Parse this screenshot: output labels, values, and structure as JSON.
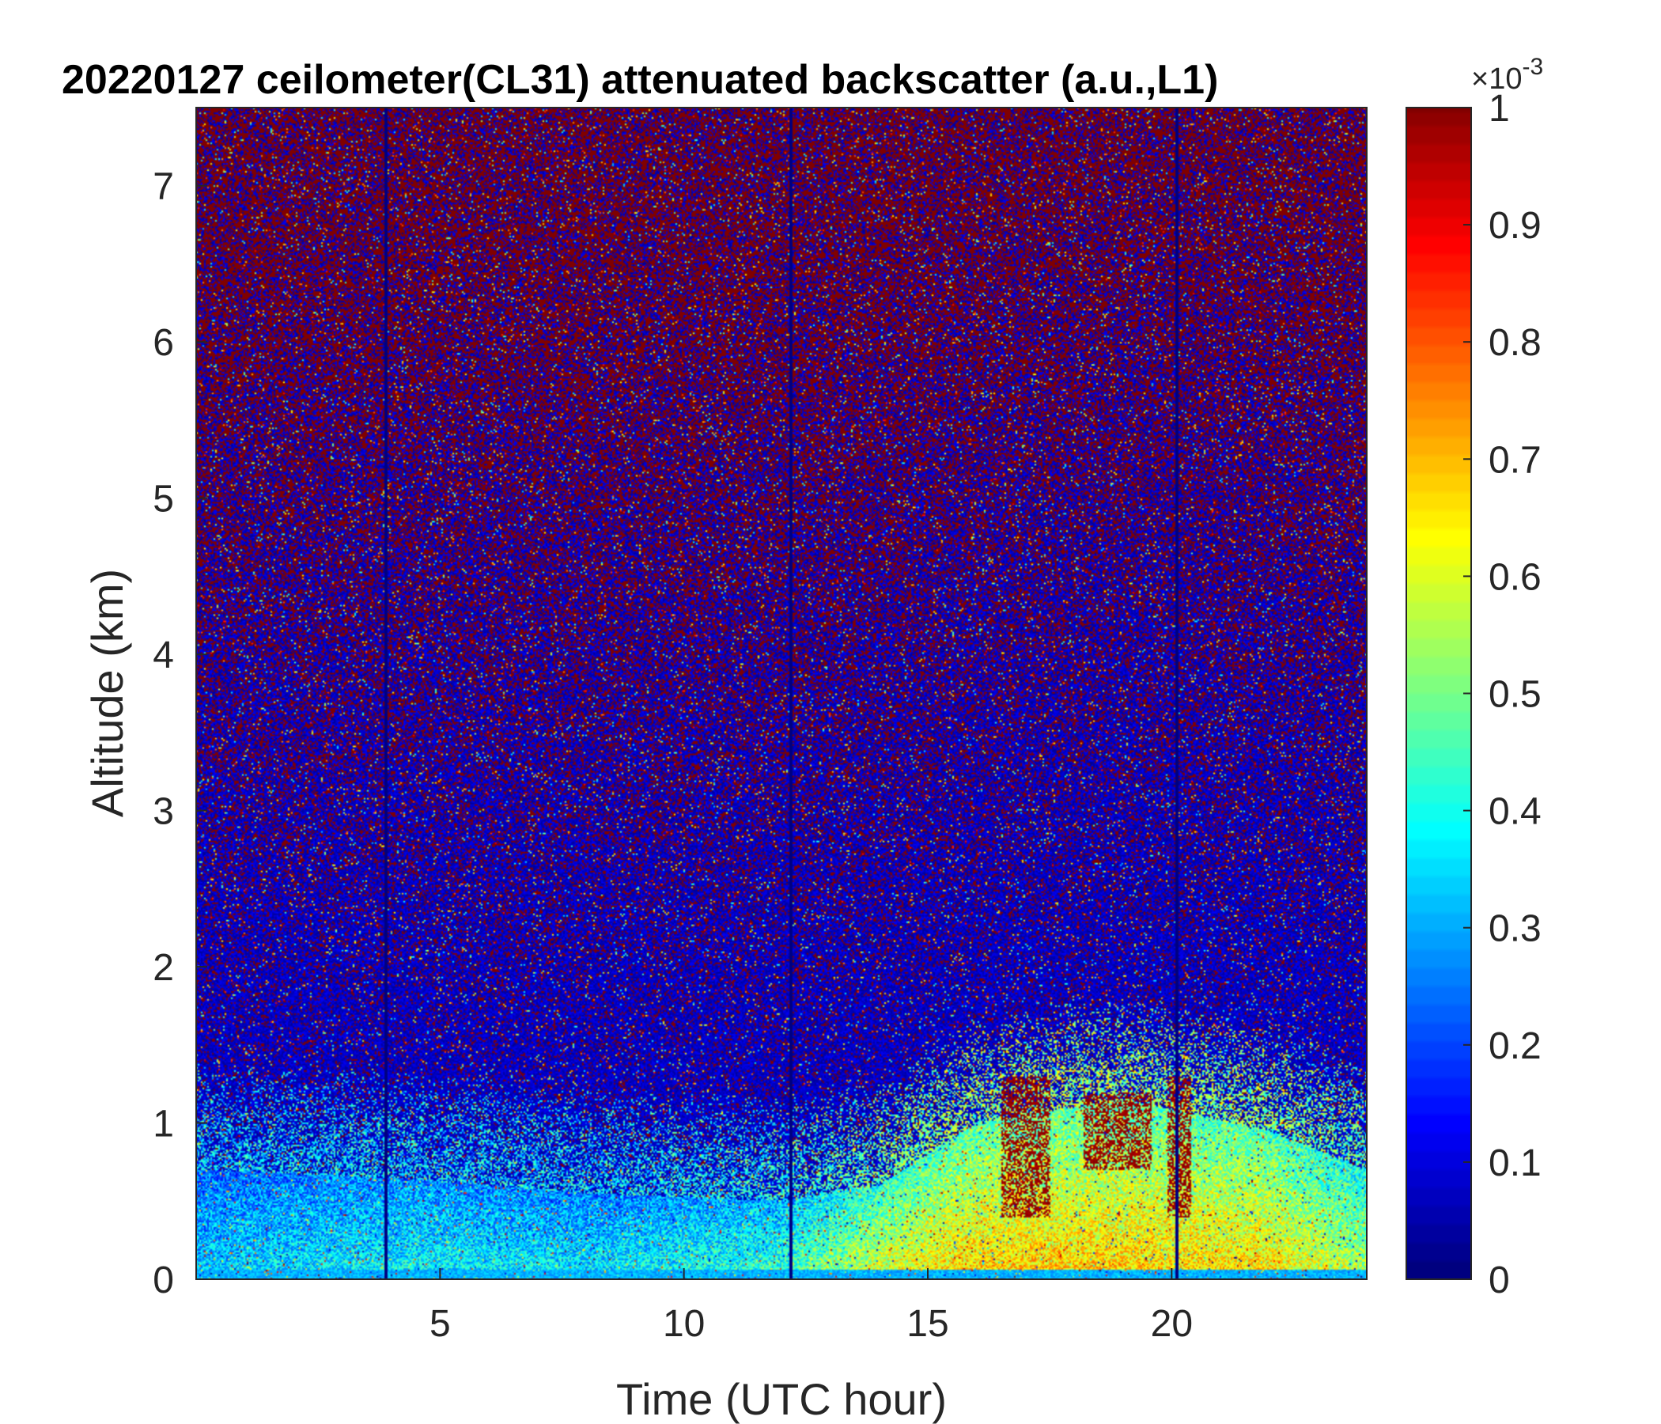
{
  "chart_data": {
    "type": "heatmap",
    "title": "20220127 ceilometer(CL31) attenuated backscatter (a.u.,L1)",
    "xlabel": "Time (UTC hour)",
    "ylabel": "Altitude (km)",
    "xlim": [
      0,
      24
    ],
    "ylim": [
      0,
      7.5
    ],
    "xticks": [
      5,
      10,
      15,
      20
    ],
    "yticks": [
      0,
      1,
      2,
      3,
      4,
      5,
      6,
      7
    ],
    "colormap": "jet",
    "colorbar": {
      "clim": [
        0,
        1
      ],
      "ticks": [
        0,
        0.1,
        0.2,
        0.3,
        0.4,
        0.5,
        0.6,
        0.7,
        0.8,
        0.9,
        1
      ],
      "exponent_base": "×10",
      "exponent_power": "-3"
    },
    "grid": false,
    "features": {
      "boundary_layer": [
        {
          "hour": 0,
          "top_km": 0.7,
          "level": 0.3
        },
        {
          "hour": 4,
          "top_km": 0.65,
          "level": 0.35
        },
        {
          "hour": 8,
          "top_km": 0.55,
          "level": 0.33
        },
        {
          "hour": 12,
          "top_km": 0.5,
          "level": 0.4
        },
        {
          "hour": 14,
          "top_km": 0.6,
          "level": 0.55
        },
        {
          "hour": 16,
          "top_km": 1.0,
          "level": 0.62
        },
        {
          "hour": 19,
          "top_km": 1.15,
          "level": 0.62
        },
        {
          "hour": 22,
          "top_km": 0.95,
          "level": 0.6
        },
        {
          "hour": 24,
          "top_km": 0.7,
          "level": 0.5
        }
      ],
      "cloud_tops": [
        {
          "hour_start": 16.5,
          "hour_end": 17.5,
          "alt_min_km": 0.4,
          "alt_max_km": 1.3
        },
        {
          "hour_start": 18.2,
          "hour_end": 19.6,
          "alt_min_km": 0.7,
          "alt_max_km": 1.2
        },
        {
          "hour_start": 19.9,
          "hour_end": 20.4,
          "alt_min_km": 0.4,
          "alt_max_km": 1.3
        }
      ],
      "data_gaps_hours": [
        3.9,
        12.2,
        20.1
      ]
    }
  }
}
